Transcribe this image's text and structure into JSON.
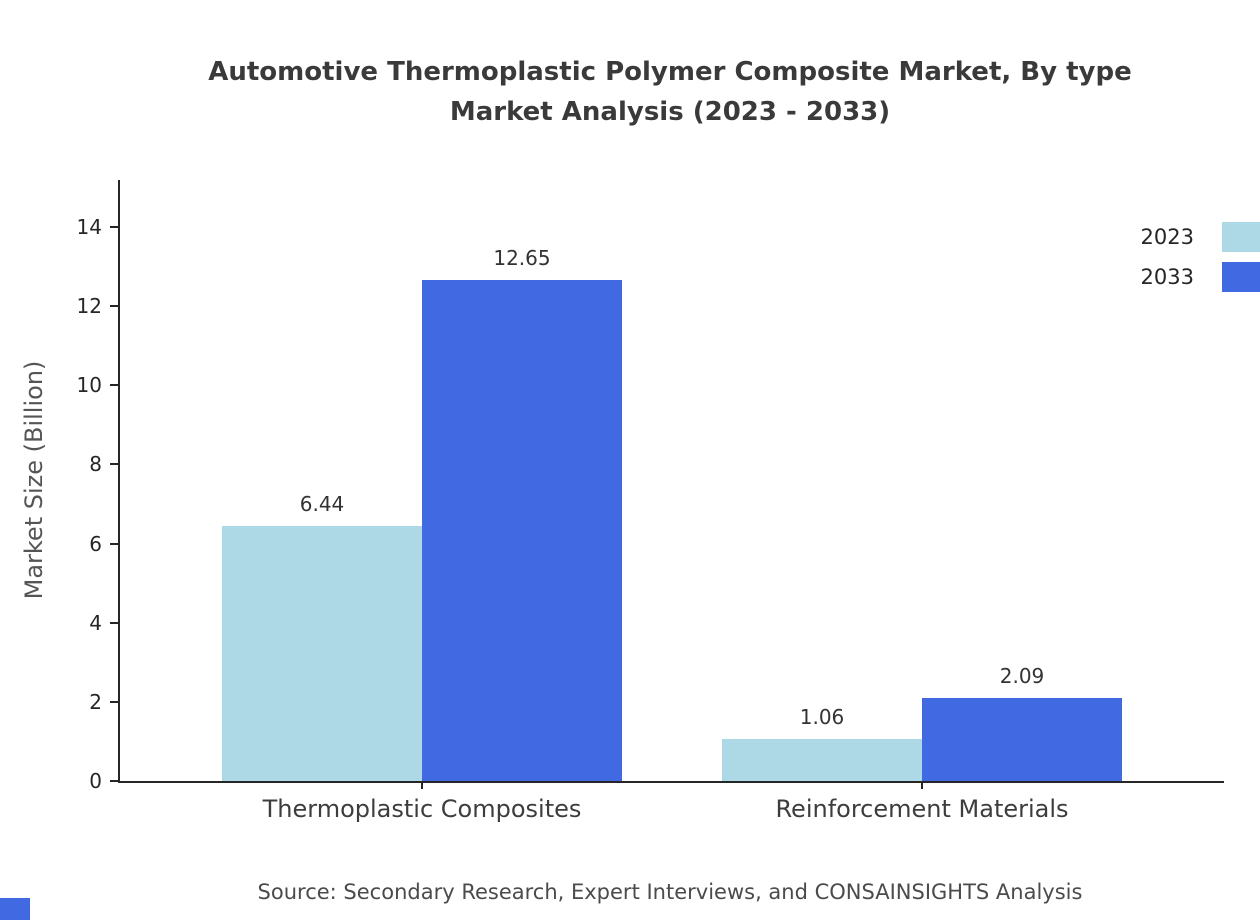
{
  "title": {
    "line1": "Automotive Thermoplastic Polymer Composite Market, By type",
    "line2": "Market Analysis (2023 - 2033)"
  },
  "chart_data": {
    "type": "bar",
    "categories": [
      "Thermoplastic Composites",
      "Reinforcement Materials"
    ],
    "series": [
      {
        "name": "2023",
        "color": "#ADD8E6",
        "values": [
          6.44,
          1.06
        ]
      },
      {
        "name": "2033",
        "color": "#4169E1",
        "values": [
          12.65,
          2.09
        ]
      }
    ],
    "title": "Automotive Thermoplastic Polymer Composite Market, By type Market Analysis (2023 - 2033)",
    "xlabel": "",
    "ylabel": "Market Size (Billion)",
    "ylim": [
      0,
      14
    ],
    "yticks": [
      0,
      2,
      4,
      6,
      8,
      10,
      12,
      14
    ],
    "grid": false,
    "legend_position": "top-right",
    "value_labels": [
      "6.44",
      "12.65",
      "1.06",
      "2.09"
    ]
  },
  "source": "Source: Secondary Research, Expert Interviews, and CONSAINSIGHTS Analysis",
  "colors": {
    "series_2023": "#ADD8E6",
    "series_2033": "#4169E1",
    "axis": "#262626",
    "title_text": "#3a3a3a",
    "corner_accent": "#4169E1"
  }
}
